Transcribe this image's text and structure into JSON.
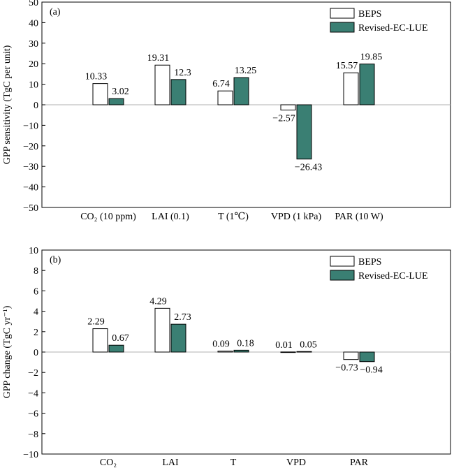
{
  "chart_data": [
    {
      "type": "bar",
      "panel_label": "(a)",
      "ylabel": "GPP sensitivity (TgC per unit)",
      "ylim": [
        -50,
        50
      ],
      "ytick_step": 10,
      "categories": [
        "CO₂ (10 ppm)",
        "LAI (0.1)",
        "T (1℃)",
        "VPD (1 kPa)",
        "PAR (10 W)"
      ],
      "series": [
        {
          "name": "BEPS",
          "values": [
            10.33,
            19.31,
            6.74,
            -2.57,
            15.57
          ],
          "labels": [
            "10.33",
            "19.31",
            "6.74",
            "−2.57",
            "15.57"
          ]
        },
        {
          "name": "Revised-EC-LUE",
          "values": [
            3.02,
            12.3,
            13.25,
            -26.43,
            19.85
          ],
          "labels": [
            "3.02",
            "12.3",
            "13.25",
            "−26.43",
            "19.85"
          ]
        }
      ],
      "legend_position": "top-right",
      "grid": false
    },
    {
      "type": "bar",
      "panel_label": "(b)",
      "ylabel": "GPP change (TgC yr⁻¹)",
      "ylim": [
        -10,
        10
      ],
      "ytick_step": 2,
      "categories": [
        "CO₂",
        "LAI",
        "T",
        "VPD",
        "PAR"
      ],
      "series": [
        {
          "name": "BEPS",
          "values": [
            2.29,
            4.29,
            0.09,
            0.01,
            -0.73
          ],
          "labels": [
            "2.29",
            "4.29",
            "0.09",
            "0.01",
            "−0.73"
          ]
        },
        {
          "name": "Revised-EC-LUE",
          "values": [
            0.67,
            2.73,
            0.18,
            0.05,
            -0.94
          ],
          "labels": [
            "0.67",
            "2.73",
            "0.18",
            "0.05",
            "−0.94"
          ]
        }
      ],
      "legend_position": "top-right",
      "grid": false
    }
  ],
  "colors": {
    "beps_fill": "#ffffff",
    "revised_fill": "#3a7f73",
    "bar_stroke": "#000000"
  }
}
